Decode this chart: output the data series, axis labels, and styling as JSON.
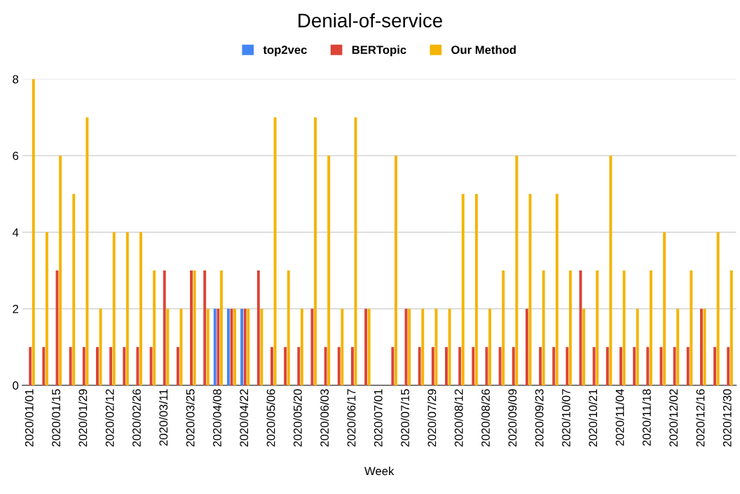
{
  "chart_data": {
    "type": "bar",
    "title": "Denial-of-service",
    "xlabel": "Week",
    "categories": [
      "2020/01/01",
      null,
      "2020/01/15",
      null,
      "2020/01/29",
      null,
      "2020/02/12",
      null,
      "2020/02/26",
      null,
      "2020/03/11",
      null,
      "2020/03/25",
      null,
      "2020/04/08",
      null,
      "2020/04/22",
      null,
      "2020/05/06",
      null,
      "2020/05/20",
      null,
      "2020/06/03",
      null,
      "2020/06/17",
      null,
      "2020/07/01",
      null,
      "2020/07/15",
      null,
      "2020/07/29",
      null,
      "2020/08/12",
      null,
      "2020/08/26",
      null,
      "2020/09/09",
      null,
      "2020/09/23",
      null,
      "2020/10/07",
      null,
      "2020/10/21",
      null,
      "2020/11/04",
      null,
      "2020/11/18",
      null,
      "2020/12/02",
      null,
      "2020/12/16",
      null,
      "2020/12/30"
    ],
    "series": [
      {
        "name": "top2vec",
        "color": "#4285f4",
        "values": [
          0,
          0,
          0,
          0,
          0,
          0,
          0,
          0,
          0,
          0,
          0,
          0,
          0,
          0,
          2,
          2,
          2,
          0,
          0,
          0,
          0,
          0,
          0,
          0,
          0,
          0,
          0,
          0,
          0,
          0,
          0,
          0,
          0,
          0,
          0,
          0,
          0,
          0,
          0,
          0,
          0,
          0,
          0,
          0,
          0,
          0,
          0,
          0,
          0,
          0,
          0,
          0,
          0
        ]
      },
      {
        "name": "BERTopic",
        "color": "#db4437",
        "values": [
          1,
          1,
          3,
          1,
          1,
          1,
          1,
          1,
          1,
          1,
          3,
          1,
          3,
          3,
          2,
          2,
          2,
          3,
          1,
          1,
          1,
          2,
          1,
          1,
          1,
          2,
          0,
          1,
          2,
          1,
          1,
          1,
          1,
          1,
          1,
          1,
          1,
          2,
          1,
          1,
          1,
          3,
          1,
          1,
          1,
          1,
          1,
          1,
          1,
          1,
          2,
          1,
          1
        ]
      },
      {
        "name": "Our Method",
        "color": "#f4b400",
        "values": [
          8,
          4,
          6,
          5,
          7,
          2,
          4,
          4,
          4,
          3,
          2,
          2,
          3,
          2,
          3,
          2,
          2,
          2,
          7,
          3,
          2,
          7,
          6,
          2,
          7,
          2,
          0,
          6,
          2,
          2,
          2,
          2,
          5,
          5,
          2,
          3,
          6,
          5,
          3,
          5,
          3,
          2,
          3,
          6,
          3,
          2,
          3,
          4,
          2,
          3,
          2,
          4,
          3
        ]
      }
    ],
    "ylim": [
      0,
      8
    ],
    "yticks": [
      0,
      2,
      4,
      6,
      8
    ],
    "grid": "y",
    "legend": "top"
  }
}
